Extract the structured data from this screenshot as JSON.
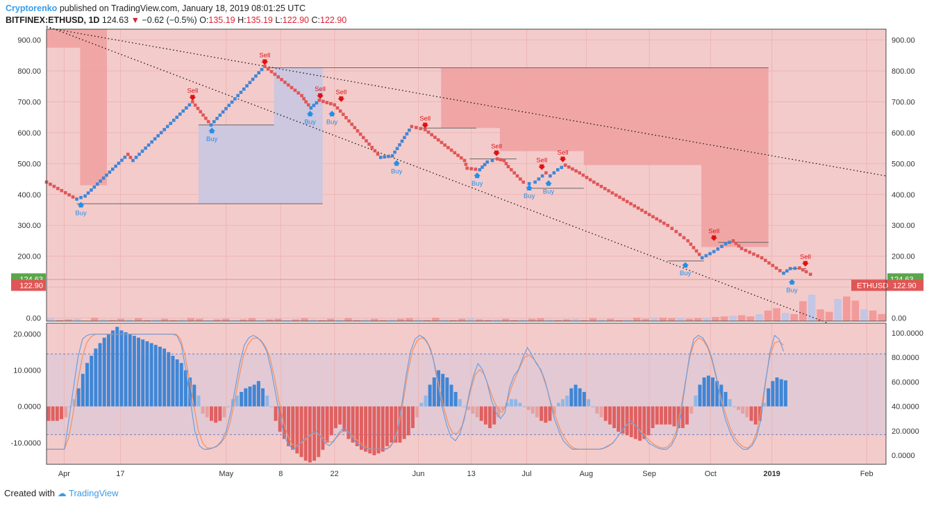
{
  "header": {
    "author": "Cryptorenko",
    "published": "published on TradingView.com, January 18, 2019 08:01:25 UTC",
    "symbol": "BITFINEX:ETHUSD, 1D",
    "last": "124.63",
    "change": "−0.62 (−0.5%)",
    "o_label": "O:",
    "o": "135.19",
    "h_label": "H:",
    "h": "135.19",
    "l_label": "L:",
    "l": "122.90",
    "c_label": "C:",
    "c": "122.90"
  },
  "footer": {
    "prefix": "Created with",
    "brand": "TradingView"
  },
  "colors": {
    "bg_pane": "#f4cbcb",
    "up_brick": "#3f86d6",
    "down_brick": "#e05656",
    "sell": "#e01010",
    "buy": "#2090e8",
    "zone_red": "#f0a0a0",
    "zone_blue": "#c9c6e2",
    "price_green": "#5aa64a",
    "price_red": "#e05656"
  },
  "chart_data": [
    {
      "type": "renko",
      "pane": "price",
      "y_ticks": [
        "900.00",
        "800.00",
        "700.00",
        "600.00",
        "500.00",
        "400.00",
        "300.00",
        "200.00",
        "100.00",
        "0.00"
      ],
      "y_tick_values": [
        900,
        800,
        700,
        600,
        500,
        400,
        300,
        200,
        100,
        0
      ],
      "ylim": [
        -10,
        935
      ],
      "x_ticks": [
        "Apr",
        "17",
        "May",
        "8",
        "22",
        "Jun",
        "13",
        "Jul",
        "Aug",
        "Sep",
        "Oct",
        "2019",
        "Feb"
      ],
      "x_tick_positions": [
        0.021,
        0.088,
        0.214,
        0.279,
        0.343,
        0.443,
        0.506,
        0.572,
        0.643,
        0.718,
        0.791,
        0.864,
        0.977
      ],
      "path_points": [
        [
          0.0,
          440
        ],
        [
          0.036,
          385
        ],
        [
          0.046,
          395
        ],
        [
          0.097,
          530
        ],
        [
          0.103,
          510
        ],
        [
          0.174,
          700
        ],
        [
          0.196,
          625
        ],
        [
          0.26,
          815
        ],
        [
          0.304,
          720
        ],
        [
          0.309,
          700
        ],
        [
          0.315,
          680
        ],
        [
          0.325,
          705
        ],
        [
          0.343,
          690
        ],
        [
          0.35,
          670
        ],
        [
          0.398,
          520
        ],
        [
          0.412,
          525
        ],
        [
          0.435,
          620
        ],
        [
          0.451,
          610
        ],
        [
          0.498,
          510
        ],
        [
          0.501,
          485
        ],
        [
          0.516,
          480
        ],
        [
          0.525,
          505
        ],
        [
          0.537,
          515
        ],
        [
          0.545,
          510
        ],
        [
          0.55,
          490
        ],
        [
          0.568,
          440
        ],
        [
          0.575,
          435
        ],
        [
          0.582,
          440
        ],
        [
          0.595,
          470
        ],
        [
          0.6,
          460
        ],
        [
          0.609,
          480
        ],
        [
          0.618,
          495
        ],
        [
          0.635,
          470
        ],
        [
          0.652,
          440
        ],
        [
          0.74,
          300
        ],
        [
          0.75,
          280
        ],
        [
          0.764,
          250
        ],
        [
          0.781,
          195
        ],
        [
          0.795,
          215
        ],
        [
          0.809,
          240
        ],
        [
          0.818,
          250
        ],
        [
          0.828,
          225
        ],
        [
          0.852,
          195
        ],
        [
          0.878,
          145
        ],
        [
          0.886,
          160
        ],
        [
          0.897,
          162
        ],
        [
          0.905,
          150
        ],
        [
          0.915,
          133
        ]
      ],
      "last_price": 124.63,
      "close_price": 122.9,
      "symbol_tag": "ETHUSD",
      "signals": [
        {
          "label": "Sell",
          "x": 0.174,
          "y": 700
        },
        {
          "label": "Buy",
          "x": 0.197,
          "y": 625
        },
        {
          "label": "Sell",
          "x": 0.26,
          "y": 815
        },
        {
          "label": "Buy",
          "x": 0.041,
          "y": 385
        },
        {
          "label": "Sell",
          "x": 0.326,
          "y": 705
        },
        {
          "label": "Buy",
          "x": 0.314,
          "y": 680
        },
        {
          "label": "Sell",
          "x": 0.351,
          "y": 695
        },
        {
          "label": "Buy",
          "x": 0.34,
          "y": 680
        },
        {
          "label": "Sell",
          "x": 0.451,
          "y": 610
        },
        {
          "label": "Buy",
          "x": 0.417,
          "y": 520
        },
        {
          "label": "Sell",
          "x": 0.536,
          "y": 520
        },
        {
          "label": "Buy",
          "x": 0.513,
          "y": 480
        },
        {
          "label": "Sell",
          "x": 0.59,
          "y": 475
        },
        {
          "label": "Buy",
          "x": 0.575,
          "y": 440
        },
        {
          "label": "Sell",
          "x": 0.615,
          "y": 500
        },
        {
          "label": "Buy",
          "x": 0.598,
          "y": 455
        },
        {
          "label": "Sell",
          "x": 0.795,
          "y": 245
        },
        {
          "label": "Buy",
          "x": 0.761,
          "y": 190
        },
        {
          "label": "Sell",
          "x": 0.904,
          "y": 162
        },
        {
          "label": "Buy",
          "x": 0.888,
          "y": 135
        }
      ],
      "zones_red": [
        [
          [
            0.0,
            875
          ],
          [
            0.04,
            875
          ],
          [
            0.04,
            430
          ],
          [
            0.072,
            430
          ],
          [
            0.072,
            935
          ],
          [
            0.0,
            935
          ]
        ],
        [
          [
            0.445,
            810
          ],
          [
            0.86,
            810
          ],
          [
            0.86,
            230
          ],
          [
            0.78,
            230
          ],
          [
            0.78,
            495
          ],
          [
            0.64,
            495
          ],
          [
            0.64,
            540
          ],
          [
            0.54,
            540
          ],
          [
            0.54,
            615
          ],
          [
            0.47,
            615
          ],
          [
            0.47,
            810
          ]
        ]
      ],
      "zones_blue": [
        [
          [
            0.181,
            625
          ],
          [
            0.271,
            625
          ],
          [
            0.271,
            810
          ],
          [
            0.329,
            810
          ],
          [
            0.329,
            370
          ],
          [
            0.181,
            370
          ]
        ]
      ],
      "trendlines": [
        [
          [
            0.0,
            945
          ],
          [
            0.939,
            -25
          ]
        ],
        [
          [
            0.0,
            940
          ],
          [
            1.0,
            460
          ]
        ]
      ],
      "hlines": [
        {
          "x1": 0.036,
          "x2": 0.329,
          "y": 370
        },
        {
          "x1": 0.181,
          "x2": 0.271,
          "y": 625
        },
        {
          "x1": 0.26,
          "x2": 0.86,
          "y": 810
        },
        {
          "x1": 0.445,
          "x2": 0.512,
          "y": 615
        },
        {
          "x1": 0.504,
          "x2": 0.56,
          "y": 515
        },
        {
          "x1": 0.575,
          "x2": 0.64,
          "y": 420
        },
        {
          "x1": 0.74,
          "x2": 0.783,
          "y": 185
        },
        {
          "x1": 0.8,
          "x2": 0.86,
          "y": 245
        },
        {
          "x1": 0.886,
          "x2": 0.905,
          "y": 160
        }
      ],
      "volume": [
        0.05,
        0.02,
        0.03,
        0.04,
        0.01,
        0.06,
        0.03,
        0.02,
        0.04,
        0.03,
        0.05,
        0.02,
        0.03,
        0.04,
        0.02,
        0.03,
        0.05,
        0.04,
        0.02,
        0.03,
        0.04,
        0.02,
        0.03,
        0.05,
        0.02,
        0.03,
        0.04,
        0.02,
        0.03,
        0.05,
        0.03,
        0.02,
        0.04,
        0.03,
        0.05,
        0.02,
        0.03,
        0.04,
        0.02,
        0.03,
        0.04,
        0.05,
        0.03,
        0.02,
        0.06,
        0.03,
        0.02,
        0.04,
        0.05,
        0.03,
        0.02,
        0.03,
        0.04,
        0.02,
        0.03,
        0.04,
        0.05,
        0.03,
        0.02,
        0.03,
        0.04,
        0.02,
        0.05,
        0.03,
        0.04,
        0.02,
        0.03,
        0.06,
        0.04,
        0.05,
        0.06,
        0.05,
        0.06,
        0.04,
        0.05,
        0.06,
        0.07,
        0.08,
        0.09,
        0.1,
        0.08,
        0.12,
        0.18,
        0.22,
        0.14,
        0.12,
        0.34,
        0.45,
        0.2,
        0.16,
        0.38,
        0.42,
        0.35,
        0.2,
        0.18,
        0.12
      ],
      "volume_max_value": 200
    },
    {
      "type": "oscillator",
      "pane": "indicator",
      "y_ticks_left": [
        "20.0000",
        "10.0000",
        "0.0000",
        "-10.0000"
      ],
      "y_tick_values_left": [
        20,
        10,
        0,
        -10
      ],
      "y_ticks_right": [
        "100.0000",
        "80.0000",
        "60.0000",
        "40.0000",
        "20.0000",
        "0.0000"
      ],
      "y_tick_values_right": [
        100,
        80,
        60,
        40,
        20,
        0
      ],
      "ylim_left": [
        -16,
        23
      ],
      "dashed_levels_left": [
        14.5,
        -7.8
      ],
      "histogram": [
        -4,
        -4,
        -4,
        -3.5,
        -3,
        0,
        2,
        5,
        9,
        12,
        14,
        16,
        17.5,
        19,
        20,
        21,
        22,
        21,
        20.5,
        20,
        19.5,
        19,
        18.5,
        18,
        17.5,
        17,
        16.5,
        16,
        15,
        14,
        13,
        12,
        10,
        8,
        6,
        3,
        -2,
        -3,
        -4,
        -4.5,
        -4,
        -3,
        0,
        2,
        3,
        4,
        5,
        5.5,
        6,
        7,
        5,
        3,
        0,
        -4,
        -7,
        -9,
        -11,
        -12,
        -13,
        -14,
        -15,
        -15.5,
        -15,
        -14,
        -12,
        -10,
        -8,
        -6,
        -5,
        -7,
        -9,
        -10,
        -11,
        -12,
        -12.5,
        -13,
        -13.5,
        -13,
        -12.5,
        -11,
        -10,
        -10,
        -10,
        -9,
        -8,
        -6,
        -3,
        1,
        3,
        6,
        8,
        10,
        9,
        8,
        6,
        4,
        2,
        0,
        -1,
        -2,
        -3,
        -4,
        -5,
        -6,
        -5,
        -3,
        -1,
        1,
        2,
        2,
        1,
        0,
        -1,
        -2,
        -3,
        -4,
        -4.5,
        -4,
        -2,
        1,
        2,
        3,
        5,
        6,
        5,
        4,
        2,
        0,
        -2,
        -3,
        -4,
        -5,
        -6,
        -7,
        -7.5,
        -8,
        -8.5,
        -9,
        -9.5,
        -9,
        -8,
        -6,
        -5,
        -5,
        -5,
        -5,
        -5.5,
        -6,
        -6,
        -5,
        -2,
        3,
        6,
        8,
        8.5,
        8,
        7,
        6,
        4,
        2,
        0,
        -1,
        -2,
        -3,
        -4,
        -5,
        -4,
        1,
        5,
        7,
        8,
        7.5,
        7.2
      ],
      "fast_line": [
        5,
        5,
        5,
        5,
        5,
        30,
        55,
        80,
        95,
        98,
        99,
        99,
        99,
        99,
        99,
        99,
        99,
        99,
        99,
        99,
        99,
        99,
        99,
        99,
        99,
        99,
        99,
        99,
        99,
        98,
        90,
        70,
        45,
        20,
        8,
        5,
        5,
        6,
        8,
        12,
        20,
        35,
        55,
        75,
        90,
        96,
        98,
        96,
        92,
        85,
        70,
        50,
        30,
        15,
        8,
        5,
        8,
        12,
        15,
        18,
        20,
        15,
        10,
        8,
        12,
        18,
        22,
        20,
        15,
        10,
        8,
        6,
        5,
        5,
        5,
        5,
        6,
        10,
        20,
        40,
        65,
        85,
        95,
        98,
        96,
        90,
        80,
        60,
        40,
        25,
        15,
        12,
        18,
        30,
        50,
        65,
        75,
        70,
        60,
        45,
        35,
        30,
        35,
        55,
        65,
        70,
        80,
        88,
        82,
        75,
        70,
        60,
        45,
        30,
        20,
        12,
        8,
        5,
        5,
        5,
        5,
        5,
        5,
        5,
        6,
        8,
        10,
        15,
        20,
        25,
        28,
        25,
        20,
        15,
        10,
        8,
        6,
        5,
        5,
        8,
        15,
        30,
        55,
        80,
        95,
        98,
        96,
        90,
        80,
        65,
        45,
        30,
        20,
        12,
        8,
        5,
        5,
        8,
        15,
        30,
        60,
        85,
        98,
        95,
        85
      ],
      "slow_line": [
        5,
        5,
        5,
        5,
        5,
        15,
        35,
        60,
        80,
        92,
        97,
        99,
        99,
        99,
        99,
        99,
        99,
        99,
        99,
        99,
        99,
        99,
        99,
        99,
        99,
        99,
        99,
        99,
        99,
        99,
        95,
        82,
        62,
        40,
        20,
        10,
        6,
        6,
        7,
        10,
        15,
        25,
        42,
        62,
        80,
        90,
        95,
        96,
        94,
        89,
        80,
        64,
        45,
        28,
        16,
        9,
        8,
        10,
        13,
        16,
        18,
        17,
        14,
        11,
        11,
        15,
        19,
        20,
        18,
        14,
        11,
        8,
        6,
        5,
        5,
        5,
        5,
        7,
        13,
        27,
        48,
        70,
        86,
        94,
        96,
        94,
        87,
        72,
        54,
        38,
        25,
        18,
        18,
        24,
        38,
        54,
        66,
        70,
        66,
        56,
        46,
        38,
        35,
        42,
        55,
        64,
        72,
        80,
        82,
        79,
        74,
        66,
        55,
        42,
        31,
        21,
        14,
        9,
        6,
        5,
        5,
        5,
        5,
        5,
        5,
        6,
        8,
        11,
        16,
        21,
        25,
        26,
        24,
        20,
        16,
        12,
        9,
        7,
        6,
        7,
        11,
        20,
        38,
        60,
        80,
        92,
        96,
        94,
        88,
        77,
        62,
        47,
        34,
        23,
        15,
        10,
        7,
        6,
        10,
        19,
        38,
        62,
        82,
        92,
        93,
        90
      ]
    }
  ]
}
